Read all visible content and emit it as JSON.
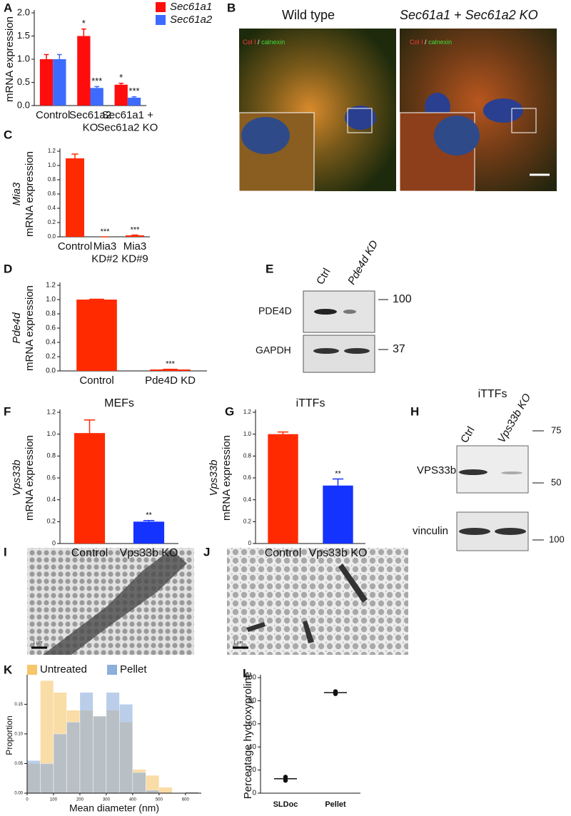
{
  "panel_letters": [
    "A",
    "B",
    "C",
    "D",
    "E",
    "F",
    "G",
    "H",
    "I",
    "J",
    "K",
    "L"
  ],
  "chart_data": [
    {
      "type": "bar",
      "ylabel": [
        "mRNA expression"
      ],
      "categories": [
        "Control",
        "Sec61a2\nKO",
        "Sec61a1 +\nSec61a2 KO"
      ],
      "series": [
        {
          "name": "Sec61a1",
          "color": "#ff0d0d",
          "values": [
            1.0,
            1.5,
            0.45
          ],
          "errors": [
            0.1,
            0.15,
            0.03
          ],
          "sig": [
            null,
            "*",
            "*"
          ]
        },
        {
          "name": "Sec61a2",
          "color": "#3d6bff",
          "values": [
            1.0,
            0.38,
            0.17
          ],
          "errors": [
            0.1,
            0.03,
            0.02
          ],
          "sig": [
            null,
            "***",
            "***"
          ]
        }
      ],
      "ylim": [
        0,
        2.0
      ],
      "yticks": [
        {
          "value": 0,
          "label": "0.0"
        },
        0.5,
        {
          "value": 1,
          "label": "1.0"
        },
        1.5,
        {
          "value": 2,
          "label": "2.0"
        }
      ],
      "legend": "top-right"
    },
    {
      "type": "bar",
      "ylabel": [
        "Mia3",
        "mRNA  expression"
      ],
      "categories": [
        "Control",
        "Mia3\nKD#2",
        "Mia3\nKD#9"
      ],
      "series": [
        {
          "color": "#ff2a00",
          "values": [
            1.1,
            0.0,
            0.02
          ],
          "errors": [
            0.06,
            0.0,
            0.005
          ],
          "sig": [
            null,
            "***",
            "***"
          ]
        }
      ],
      "ylim": [
        0,
        1.2
      ],
      "yticks": [
        {
          "value": 0,
          "label": "0.0"
        },
        0.2,
        0.4,
        0.6,
        0.8,
        {
          "value": 1,
          "label": "1.0"
        },
        1.2
      ]
    },
    {
      "type": "bar",
      "ylabel": [
        "Pde4d",
        "mRNA  expression"
      ],
      "categories": [
        "Control",
        "Pde4D KD"
      ],
      "series": [
        {
          "color": "#ff2a00",
          "values": [
            1.0,
            0.02
          ],
          "errors": [
            0.005,
            0.003
          ],
          "sig": [
            null,
            "***"
          ]
        }
      ],
      "ylim": [
        0,
        1.2
      ],
      "yticks": [
        {
          "value": 0,
          "label": "0.0"
        },
        0.2,
        0.4,
        0.6,
        0.8,
        {
          "value": 1,
          "label": "1.0"
        },
        1.2
      ]
    },
    {
      "type": "bar",
      "title": "MEFs",
      "ylabel": [
        "Vps33b",
        "mRNA expression"
      ],
      "categories": [
        "Control",
        "Vps33b KO"
      ],
      "colors": [
        "#ff2a00",
        "#1433ff"
      ],
      "series": [
        {
          "values": [
            1.01,
            0.2
          ],
          "errors": [
            0.12,
            0.01
          ],
          "sig": [
            null,
            "**"
          ]
        }
      ],
      "ylim": [
        0,
        1.2
      ],
      "yticks": [
        0,
        0.2,
        0.4,
        0.6,
        0.8,
        {
          "value": 1,
          "label": "1.0"
        },
        1.2
      ]
    },
    {
      "type": "bar",
      "title": "iTTFs",
      "ylabel": [
        "Vps33b",
        "mRNA expression"
      ],
      "categories": [
        "Control",
        "Vps33b KO"
      ],
      "colors": [
        "#ff2a00",
        "#1433ff"
      ],
      "series": [
        {
          "values": [
            1.0,
            0.53
          ],
          "errors": [
            0.02,
            0.06
          ],
          "sig": [
            null,
            "**"
          ]
        }
      ],
      "ylim": [
        0,
        1.2
      ],
      "yticks": [
        0,
        0.2,
        0.4,
        0.6,
        0.8,
        {
          "value": 1,
          "label": "1.0"
        },
        1.2
      ]
    },
    {
      "type": "histogram",
      "xlabel": "Mean diameter (nm)",
      "ylabel": [
        "Proportion"
      ],
      "bins": [
        0,
        50,
        100,
        150,
        200,
        250,
        300,
        350,
        400,
        450,
        500,
        550,
        600,
        650
      ],
      "series": [
        {
          "name": "Untreated",
          "color": "#f7c56a",
          "values": [
            0.05,
            0.19,
            0.17,
            0.14,
            0.14,
            0.13,
            0.14,
            0.12,
            0.04,
            0.03,
            0.01,
            0,
            0.002
          ]
        },
        {
          "name": "Pellet",
          "color": "#8eaedb",
          "values": [
            0.055,
            0.05,
            0.1,
            0.12,
            0.17,
            0.13,
            0.17,
            0.15,
            0.035,
            0.005,
            0,
            0,
            0.002
          ]
        }
      ],
      "xlim": [
        0,
        660
      ],
      "xticks": [
        0,
        100,
        200,
        300,
        400,
        500,
        600
      ],
      "ylim": [
        0,
        0.195
      ],
      "yticks": [
        {
          "value": 0,
          "label": "0.00"
        },
        0.05,
        {
          "value": 0.1,
          "label": "0.10"
        },
        0.15
      ],
      "legend": "top"
    },
    {
      "type": "dot",
      "ylabel": [
        "Percentage hydroxyproline"
      ],
      "categories": [
        "SLDoc",
        "Pellet"
      ],
      "points": [
        [
          11,
          14
        ],
        [
          86,
          88
        ]
      ],
      "means": [
        12.5,
        87
      ],
      "ylim": [
        0,
        100
      ],
      "yticks": [
        0,
        20,
        40,
        60,
        80,
        100
      ]
    }
  ],
  "micrographs": {
    "titles": [
      "Wild type",
      "Sec61a1 + Sec61a2 KO"
    ],
    "stain": [
      "Col I",
      "/",
      "calnexin"
    ]
  },
  "blot_e": {
    "lanes": [
      "Ctrl",
      "Pde4d KD"
    ],
    "rows": [
      "PDE4D",
      "GAPDH"
    ],
    "markers": [
      "100",
      "37"
    ]
  },
  "blot_h": {
    "title": "iTTFs",
    "lanes": [
      "Ctrl",
      "Vps33b KO"
    ],
    "rows": [
      "VPS33b",
      "vinculin"
    ],
    "markers": [
      "75",
      "50",
      "100"
    ]
  },
  "em": {
    "scale": "1 μm"
  }
}
